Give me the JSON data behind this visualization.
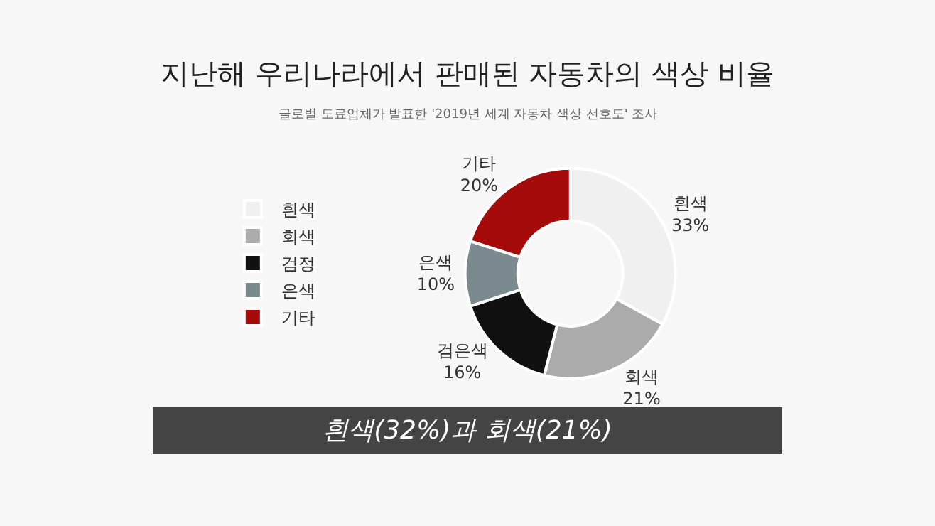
{
  "chart_data": {
    "type": "donut",
    "title": "지난해 우리나라에서 판매된 자동차의 색상 비율",
    "subtitle": "글로벌 도료업체가 발표한 '2019년 세계 자동차 색상 선호도' 조사",
    "categories": [
      "흰색",
      "회색",
      "검정",
      "은색",
      "기타"
    ],
    "values": [
      33,
      21,
      16,
      10,
      20
    ],
    "colors": [
      "#f0f0f0",
      "#ababab",
      "#111111",
      "#7b8a8e",
      "#a50b0b"
    ],
    "value_labels": [
      "흰색\n33%",
      "회색\n21%",
      "검은색\n16%",
      "은색\n10%",
      "기타\n20%"
    ],
    "legend": "left",
    "annotations": [
      "흰색(32%)과 회색(21%)"
    ]
  }
}
